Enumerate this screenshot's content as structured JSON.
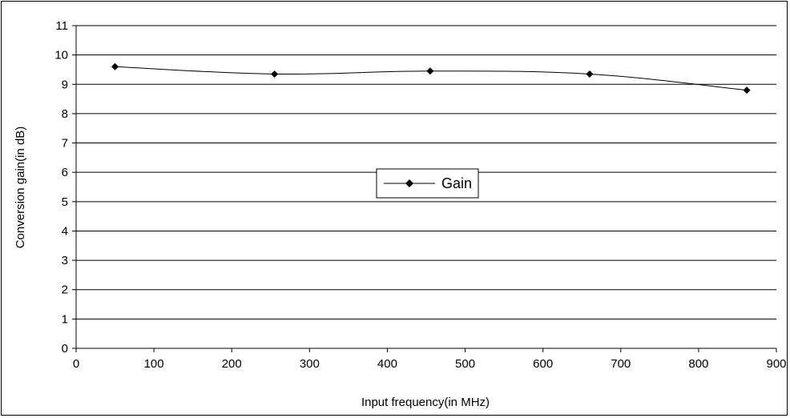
{
  "chart_data": {
    "type": "line",
    "title": "",
    "xlabel": "Input frequency(in MHz)",
    "ylabel": "Conversion gain(in dB)",
    "xlim": [
      0,
      900
    ],
    "ylim": [
      0,
      11
    ],
    "x_ticks": [
      0,
      100,
      200,
      300,
      400,
      500,
      600,
      700,
      800,
      900
    ],
    "y_ticks": [
      0,
      1,
      2,
      3,
      4,
      5,
      6,
      7,
      8,
      9,
      10,
      11
    ],
    "grid": "horizontal",
    "legend_position": "center",
    "series": [
      {
        "name": "Gain",
        "x": [
          50,
          255,
          455,
          660,
          862
        ],
        "y": [
          9.6,
          9.35,
          9.45,
          9.35,
          8.8
        ],
        "color": "#000000",
        "marker": "diamond"
      }
    ]
  }
}
